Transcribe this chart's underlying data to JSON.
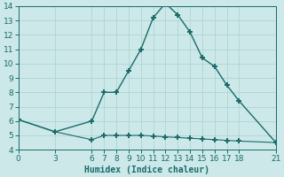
{
  "line1_x": [
    0,
    3,
    6,
    7,
    8,
    9,
    10,
    11,
    12,
    13,
    14,
    15,
    16,
    17,
    18,
    21
  ],
  "line1_y": [
    6.1,
    5.25,
    6.0,
    8.0,
    8.0,
    9.5,
    11.0,
    13.2,
    14.2,
    13.4,
    12.2,
    10.4,
    9.8,
    8.5,
    7.4,
    4.5
  ],
  "line2_x": [
    0,
    3,
    6,
    7,
    8,
    9,
    10,
    11,
    12,
    13,
    14,
    15,
    16,
    17,
    18,
    21
  ],
  "line2_y": [
    6.1,
    5.25,
    4.7,
    5.0,
    5.0,
    5.0,
    5.0,
    4.95,
    4.9,
    4.85,
    4.8,
    4.75,
    4.7,
    4.65,
    4.6,
    4.5
  ],
  "line_color": "#1a6b6b",
  "marker": "+",
  "marker_size": 5,
  "marker_lw": 1.4,
  "line1_lw": 1.0,
  "line2_lw": 0.8,
  "xlabel": "Humidex (Indice chaleur)",
  "xlim": [
    0,
    21
  ],
  "ylim": [
    4,
    14
  ],
  "xticks": [
    0,
    3,
    6,
    7,
    8,
    9,
    10,
    11,
    12,
    13,
    14,
    15,
    16,
    17,
    18,
    21
  ],
  "yticks": [
    4,
    5,
    6,
    7,
    8,
    9,
    10,
    11,
    12,
    13,
    14
  ],
  "bg_color": "#cce8e8",
  "grid_color": "#b0d4d4",
  "tick_fontsize": 6.5,
  "xlabel_fontsize": 7
}
